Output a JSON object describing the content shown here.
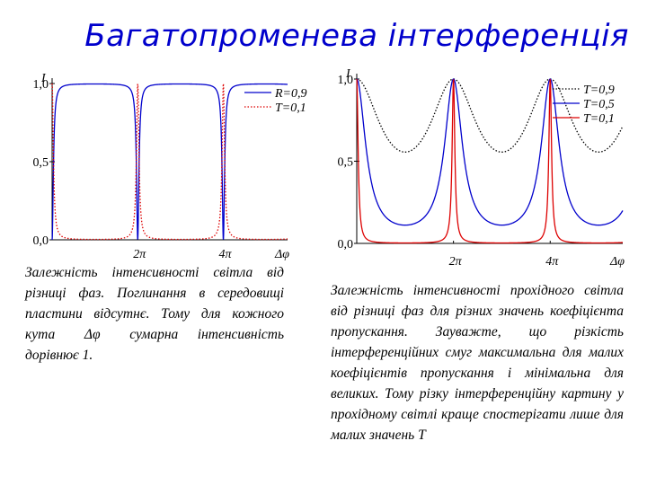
{
  "title": "Багатопроменева інтерференція",
  "captions": {
    "left_part1": "Залежність інтенсивності світла від різниці фаз. Поглинання в середовищі пластини відсутнє. Тому для кожного кута",
    "left_symbol": "Δφ",
    "left_part2": "сумарна інтенсивність дорівнює 1.",
    "right": "Залежність інтенсивності прохідного світла від різниці фаз для різних значень коефіцієнта пропускання. Зауважте, що різкість інтерференційних смуг максимальна для малих коефіцієнтів пропускання і мінімальна для великих. Тому різку інтерференційну картину у прохідному світлі краще спостерігати лише для малих значень Т"
  },
  "chart_data": [
    {
      "type": "line",
      "ylabel": "I",
      "xlabel": "Δφ",
      "ylim": [
        0,
        1.0
      ],
      "xlim": [
        0,
        5.5
      ],
      "ytick_labels": [
        "0,0",
        "0,5",
        "1,0"
      ],
      "yticks": [
        0,
        0.5,
        1.0
      ],
      "xtick_labels": [
        "2π",
        "4π"
      ],
      "xticks": [
        2,
        4
      ],
      "grid": false,
      "legend_position": "top-right",
      "series": [
        {
          "name": "R=0,9",
          "color": "#0000cc",
          "style": "solid",
          "kind": "reflected",
          "F": 360
        },
        {
          "name": "T=0,1",
          "color": "#dd0000",
          "style": "dotted",
          "kind": "transmitted",
          "F": 360
        }
      ]
    },
    {
      "type": "line",
      "ylabel": "I",
      "xlabel": "Δφ",
      "ylim": [
        0,
        1.0
      ],
      "xlim": [
        0,
        5.5
      ],
      "ytick_labels": [
        "0,0",
        "0,5",
        "1,0"
      ],
      "yticks": [
        0,
        0.5,
        1.0
      ],
      "xtick_labels": [
        "2π",
        "4π"
      ],
      "xticks": [
        2,
        4
      ],
      "grid": false,
      "legend_position": "top-right",
      "series": [
        {
          "name": "T=0,9",
          "color": "#000000",
          "style": "dotted",
          "kind": "transmitted",
          "F": 0.8
        },
        {
          "name": "T=0,5",
          "color": "#0000cc",
          "style": "solid",
          "kind": "transmitted",
          "F": 8
        },
        {
          "name": "T=0,1",
          "color": "#dd0000",
          "style": "solid",
          "kind": "transmitted",
          "F": 360
        }
      ]
    }
  ]
}
